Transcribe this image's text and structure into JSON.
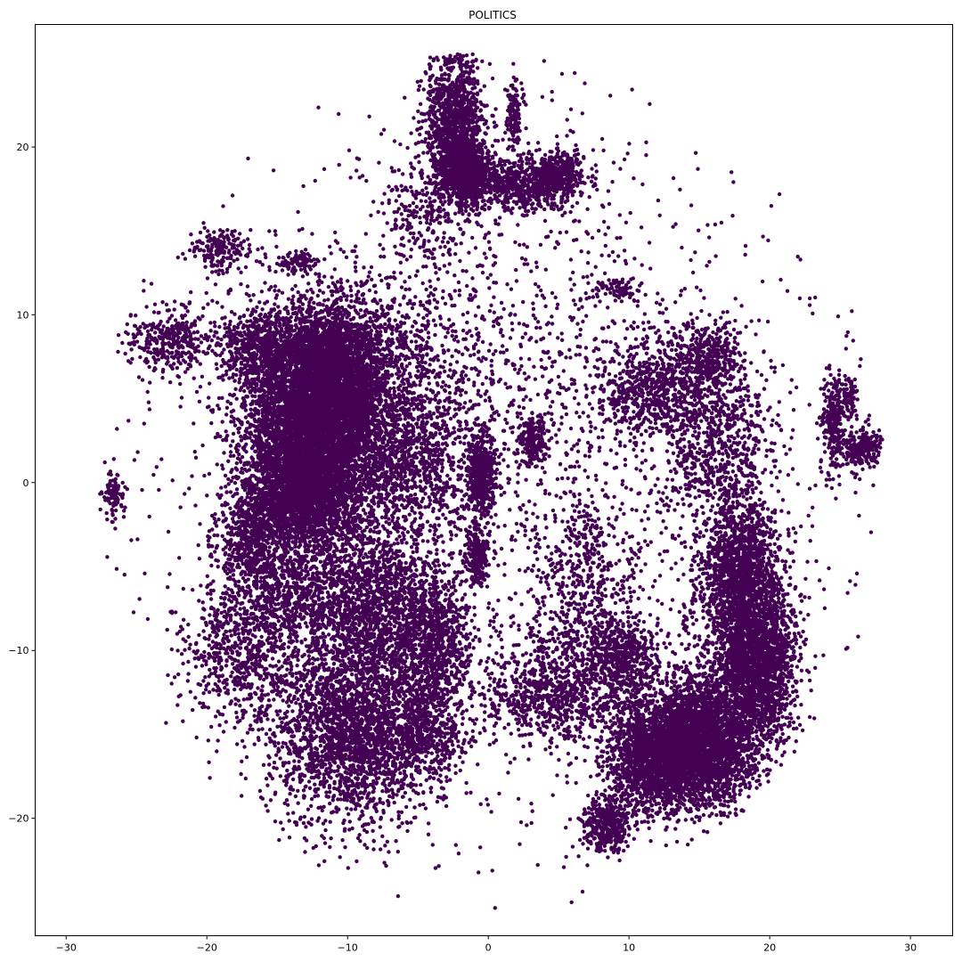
{
  "chart_data": {
    "type": "scatter",
    "title": "POLITICS",
    "xlabel": "",
    "ylabel": "",
    "xlim": [
      -32.2,
      33.0
    ],
    "ylim": [
      -27.0,
      27.3
    ],
    "x_ticks": [
      -30,
      -20,
      -10,
      0,
      10,
      20,
      30
    ],
    "y_ticks": [
      -20,
      -10,
      0,
      10,
      20
    ],
    "x_tick_labels": [
      "−30",
      "−20",
      "−10",
      "0",
      "10",
      "20",
      "30"
    ],
    "y_tick_labels": [
      "−20",
      "−10",
      "0",
      "10",
      "20"
    ],
    "grid": false,
    "legend": "none",
    "point_color": "#440154",
    "clusters": [
      {
        "cx": -12.5,
        "cy": 3.5,
        "sx": 2.3,
        "sy": 3.3,
        "n": 6000
      },
      {
        "cx": -10.5,
        "cy": 6.5,
        "sx": 1.8,
        "sy": 2.0,
        "n": 1800
      },
      {
        "cx": -13.5,
        "cy": -1.0,
        "sx": 2.0,
        "sy": 1.5,
        "n": 1400
      },
      {
        "cx": -16.0,
        "cy": 8.0,
        "sx": 1.5,
        "sy": 1.2,
        "n": 600
      },
      {
        "cx": -22.5,
        "cy": 8.5,
        "sx": 1.5,
        "sy": 1.0,
        "n": 350
      },
      {
        "cx": -19.0,
        "cy": 13.8,
        "sx": 1.2,
        "sy": 0.7,
        "n": 180
      },
      {
        "cx": -13.5,
        "cy": 13.2,
        "sx": 0.8,
        "sy": 0.3,
        "n": 80
      },
      {
        "cx": -17.0,
        "cy": -3.5,
        "sx": 1.2,
        "sy": 1.4,
        "n": 450
      },
      {
        "cx": -14.0,
        "cy": -6.5,
        "sx": 2.0,
        "sy": 1.5,
        "n": 600
      },
      {
        "cx": -17.5,
        "cy": -10.0,
        "sx": 2.0,
        "sy": 2.2,
        "n": 700
      },
      {
        "cx": -8.0,
        "cy": -7.5,
        "sx": 2.5,
        "sy": 2.5,
        "n": 1400
      },
      {
        "cx": -9.5,
        "cy": -14.5,
        "sx": 3.0,
        "sy": 2.8,
        "n": 2600
      },
      {
        "cx": -4.0,
        "cy": -9.5,
        "sx": 1.3,
        "sy": 2.0,
        "n": 800
      },
      {
        "cx": -4.5,
        "cy": -15.0,
        "sx": 1.5,
        "sy": 1.5,
        "n": 400
      },
      {
        "cx": -6.0,
        "cy": 1.0,
        "sx": 2.5,
        "sy": 2.5,
        "n": 1200
      },
      {
        "cx": -6.0,
        "cy": 8.0,
        "sx": 3.0,
        "sy": 2.5,
        "n": 500
      },
      {
        "cx": -2.5,
        "cy": 21.5,
        "sx": 1.0,
        "sy": 2.2,
        "n": 1200
      },
      {
        "cx": -1.5,
        "cy": 18.5,
        "sx": 0.9,
        "sy": 1.0,
        "n": 900
      },
      {
        "cx": 2.5,
        "cy": 17.8,
        "sx": 2.0,
        "sy": 0.8,
        "n": 700
      },
      {
        "cx": 5.0,
        "cy": 18.5,
        "sx": 0.8,
        "sy": 0.6,
        "n": 300
      },
      {
        "cx": 1.8,
        "cy": 22.0,
        "sx": 0.3,
        "sy": 1.0,
        "n": 120
      },
      {
        "cx": -4.5,
        "cy": 16.0,
        "sx": 1.5,
        "sy": 1.5,
        "n": 200
      },
      {
        "cx": -0.5,
        "cy": 0.5,
        "sx": 0.5,
        "sy": 1.3,
        "n": 500
      },
      {
        "cx": -0.8,
        "cy": -4.5,
        "sx": 0.4,
        "sy": 0.8,
        "n": 250
      },
      {
        "cx": 3.2,
        "cy": 2.5,
        "sx": 0.5,
        "sy": 0.8,
        "n": 200
      },
      {
        "cx": 12.0,
        "cy": 5.5,
        "sx": 2.0,
        "sy": 1.5,
        "n": 700
      },
      {
        "cx": 15.5,
        "cy": 7.5,
        "sx": 1.2,
        "sy": 1.0,
        "n": 350
      },
      {
        "cx": 16.5,
        "cy": 2.0,
        "sx": 2.0,
        "sy": 2.5,
        "n": 700
      },
      {
        "cx": 18.0,
        "cy": -6.0,
        "sx": 1.5,
        "sy": 2.5,
        "n": 1800
      },
      {
        "cx": 19.0,
        "cy": -11.0,
        "sx": 1.5,
        "sy": 2.0,
        "n": 1800
      },
      {
        "cx": 14.5,
        "cy": -15.5,
        "sx": 2.3,
        "sy": 1.8,
        "n": 3800
      },
      {
        "cx": 11.5,
        "cy": -17.0,
        "sx": 1.5,
        "sy": 1.3,
        "n": 900
      },
      {
        "cx": 8.5,
        "cy": -20.5,
        "sx": 0.8,
        "sy": 0.8,
        "n": 400
      },
      {
        "cx": 9.5,
        "cy": -10.5,
        "sx": 1.3,
        "sy": 1.3,
        "n": 500
      },
      {
        "cx": 6.0,
        "cy": -12.0,
        "sx": 2.5,
        "sy": 2.0,
        "n": 600
      },
      {
        "cx": 3.5,
        "cy": -13.0,
        "sx": 2.0,
        "sy": 1.2,
        "n": 300
      },
      {
        "cx": 7.0,
        "cy": -6.0,
        "sx": 1.8,
        "sy": 2.5,
        "n": 400
      },
      {
        "cx": 24.5,
        "cy": 3.5,
        "sx": 0.4,
        "sy": 1.4,
        "n": 250
      },
      {
        "cx": 26.5,
        "cy": 2.0,
        "sx": 0.8,
        "sy": 0.6,
        "n": 250
      },
      {
        "cx": 25.7,
        "cy": 5.0,
        "sx": 0.3,
        "sy": 0.6,
        "n": 80
      },
      {
        "cx": -26.5,
        "cy": -0.8,
        "sx": 0.4,
        "sy": 0.7,
        "n": 90
      },
      {
        "cx": 9.0,
        "cy": 11.5,
        "sx": 0.8,
        "sy": 0.4,
        "n": 80
      },
      {
        "cx": 4.0,
        "cy": 5.0,
        "sx": 6.0,
        "sy": 8.0,
        "n": 600
      },
      {
        "cx": 0.0,
        "cy": 0.0,
        "sx": 14.0,
        "sy": 12.0,
        "n": 1800
      }
    ]
  }
}
